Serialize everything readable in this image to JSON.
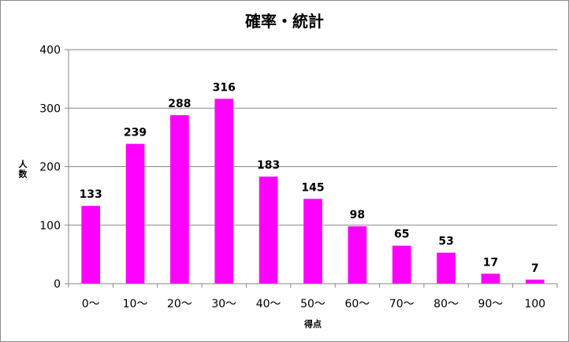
{
  "chart_data": {
    "type": "bar",
    "title": "確率・統計",
    "xlabel": "得点",
    "ylabel": "人数",
    "categories": [
      "0～",
      "10～",
      "20～",
      "30～",
      "40～",
      "50～",
      "60～",
      "70～",
      "80～",
      "90～",
      "100"
    ],
    "values": [
      133,
      239,
      288,
      316,
      183,
      145,
      98,
      65,
      53,
      17,
      7
    ],
    "ylim": [
      0,
      400
    ],
    "yticks": [
      0,
      100,
      200,
      300,
      400
    ],
    "grid": true,
    "legend": "none",
    "colors": {
      "bar": "#ff00ff",
      "grid": "#868686",
      "axis": "#868686",
      "frame": "#8c8c8c"
    }
  }
}
